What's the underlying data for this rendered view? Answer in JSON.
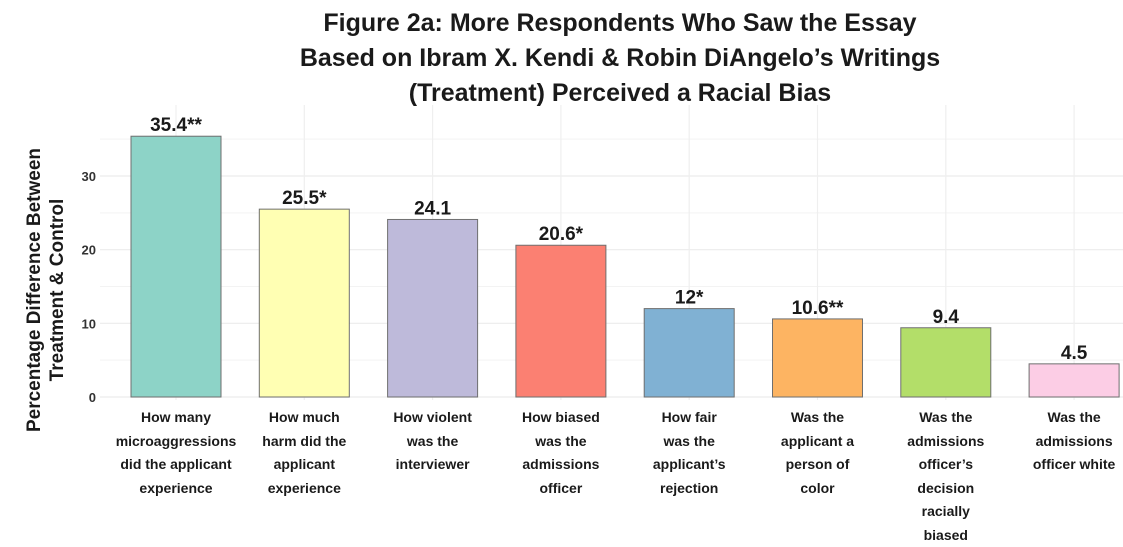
{
  "chart_data": {
    "type": "bar",
    "title_lines": [
      "Figure 2a: More Respondents Who Saw the Essay",
      "Based on Ibram X. Kendi & Robin DiAngelo’s Writings",
      "(Treatment) Perceived a Racial Bias"
    ],
    "ylabel_lines": [
      "Percentage Difference Between",
      "Treatment & Control"
    ],
    "xlabel": "",
    "ylim": [
      0,
      37
    ],
    "yticks": [
      0,
      10,
      20,
      30
    ],
    "grid": true,
    "legend": "none",
    "categories": [
      [
        "How many",
        "microaggressions",
        "did the applicant",
        "experience"
      ],
      [
        "How much",
        "harm did the",
        "applicant",
        "experience"
      ],
      [
        "How violent",
        "was the",
        "interviewer"
      ],
      [
        "How biased",
        "was the",
        "admissions",
        "officer"
      ],
      [
        "How fair",
        "was the",
        "applicant’s",
        "rejection"
      ],
      [
        "Was the",
        "applicant a",
        "person of",
        "color"
      ],
      [
        "Was the",
        "admissions",
        "officer’s",
        "decision",
        "racially",
        "biased"
      ],
      [
        "Was the",
        "admissions",
        "officer white"
      ]
    ],
    "values": [
      35.4,
      25.5,
      24.1,
      20.6,
      12,
      10.6,
      9.4,
      4.5
    ],
    "value_labels": [
      "35.4**",
      "25.5*",
      "24.1",
      "20.6*",
      "12*",
      "10.6**",
      "9.4",
      "4.5"
    ],
    "colors": [
      "#8DD3C7",
      "#FFFFB3",
      "#BEBADA",
      "#FB8072",
      "#80B1D3",
      "#FDB462",
      "#B3DE69",
      "#FCCDE5"
    ]
  }
}
